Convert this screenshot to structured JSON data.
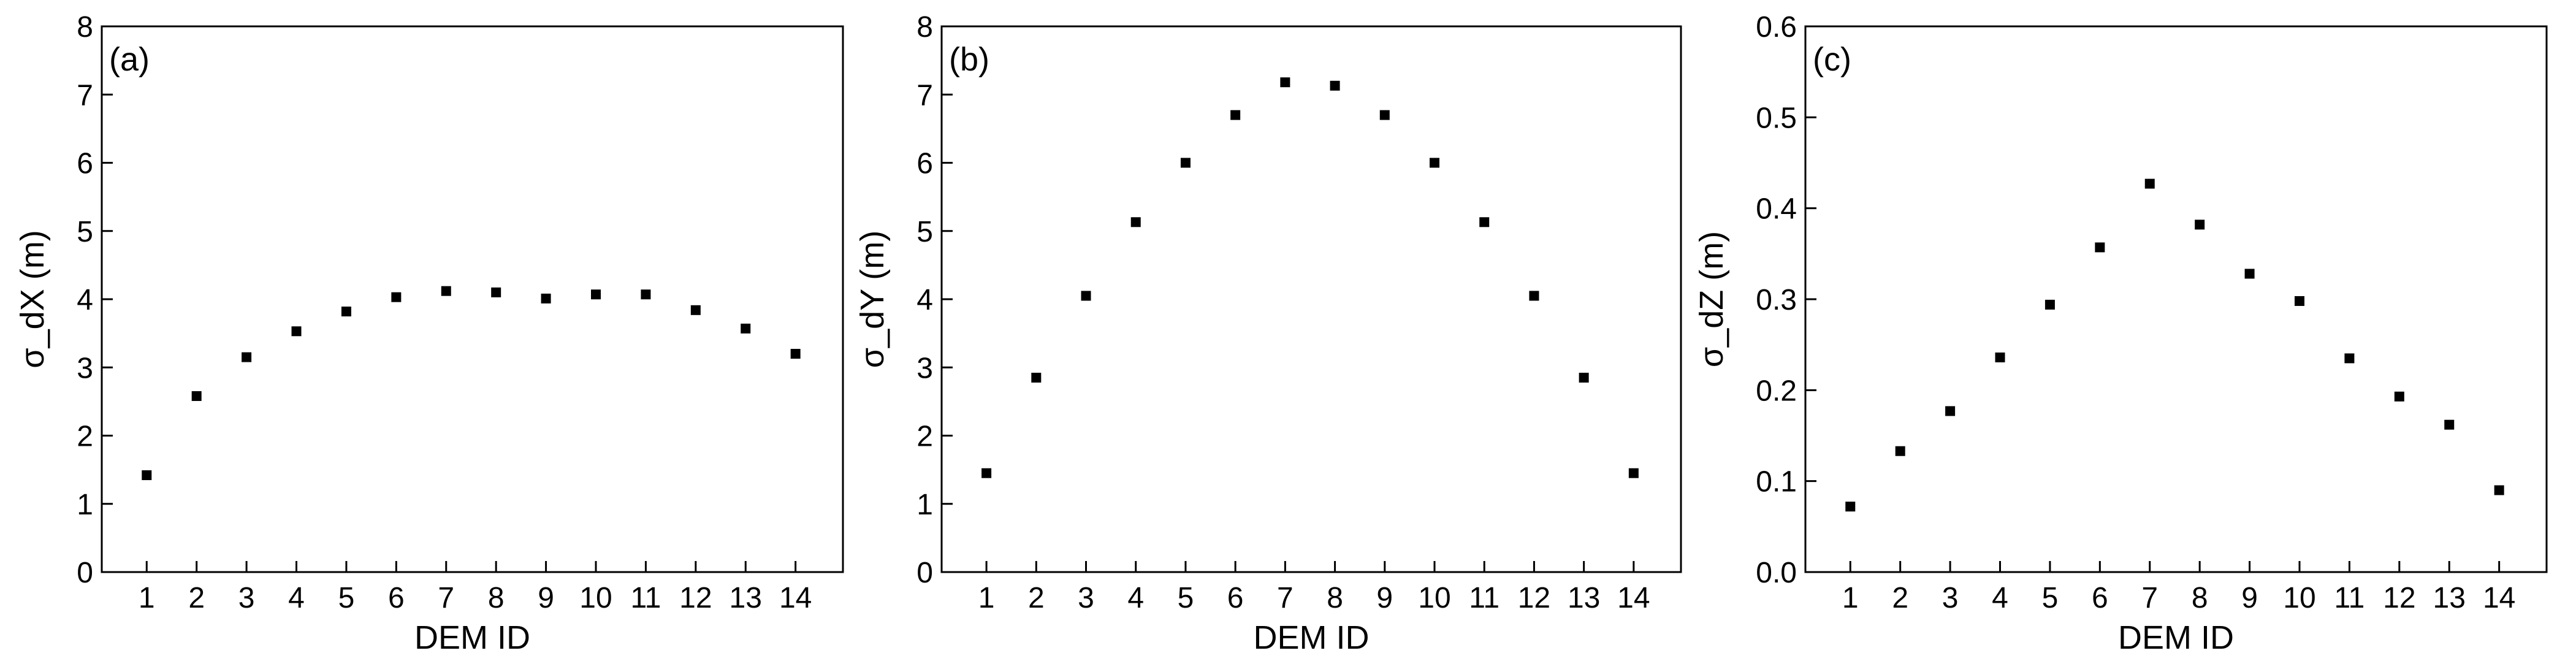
{
  "chart_data": [
    {
      "type": "scatter",
      "annotation": "(a)",
      "x_label": "DEM ID",
      "y_label": "σ_dX (m)",
      "x": [
        1,
        2,
        3,
        4,
        5,
        6,
        7,
        8,
        9,
        10,
        11,
        12,
        13,
        14
      ],
      "values": [
        1.42,
        2.58,
        3.15,
        3.53,
        3.82,
        4.03,
        4.12,
        4.1,
        4.01,
        4.07,
        4.07,
        3.84,
        3.57,
        3.2
      ],
      "color": "#000000",
      "xlim": [
        0.1,
        14.95
      ],
      "xticks": [
        1,
        2,
        3,
        4,
        5,
        6,
        7,
        8,
        9,
        10,
        11,
        12,
        13,
        14
      ],
      "ylim": [
        0,
        8
      ],
      "yticks": [
        0,
        1,
        2,
        3,
        4,
        5,
        6,
        7,
        8
      ]
    },
    {
      "type": "scatter",
      "annotation": "(b)",
      "x_label": "DEM ID",
      "y_label": "σ_dY (m)",
      "x": [
        1,
        2,
        3,
        4,
        5,
        6,
        7,
        8,
        9,
        10,
        11,
        12,
        13,
        14
      ],
      "values": [
        1.45,
        2.85,
        4.05,
        5.13,
        6.0,
        6.7,
        7.18,
        7.13,
        6.7,
        6.0,
        5.13,
        4.05,
        2.85,
        1.45
      ],
      "color": "#000000",
      "xlim": [
        0.1,
        14.95
      ],
      "xticks": [
        1,
        2,
        3,
        4,
        5,
        6,
        7,
        8,
        9,
        10,
        11,
        12,
        13,
        14
      ],
      "ylim": [
        0,
        8
      ],
      "yticks": [
        0,
        1,
        2,
        3,
        4,
        5,
        6,
        7,
        8
      ]
    },
    {
      "type": "scatter",
      "annotation": "(c)",
      "x_label": "DEM ID",
      "y_label": "σ_dZ (m)",
      "x": [
        1,
        2,
        3,
        4,
        5,
        6,
        7,
        8,
        9,
        10,
        11,
        12,
        13,
        14
      ],
      "values": [
        0.072,
        0.133,
        0.177,
        0.236,
        0.294,
        0.357,
        0.427,
        0.382,
        0.328,
        0.298,
        0.235,
        0.193,
        0.162,
        0.09
      ],
      "color": "#000000",
      "xlim": [
        0.1,
        14.95
      ],
      "xticks": [
        1,
        2,
        3,
        4,
        5,
        6,
        7,
        8,
        9,
        10,
        11,
        12,
        13,
        14
      ],
      "ylim": [
        0,
        0.6
      ],
      "yticks": [
        {
          "value": 0,
          "label": "0.0"
        },
        0.1,
        0.2,
        0.3,
        0.4,
        0.5,
        0.6
      ]
    }
  ]
}
